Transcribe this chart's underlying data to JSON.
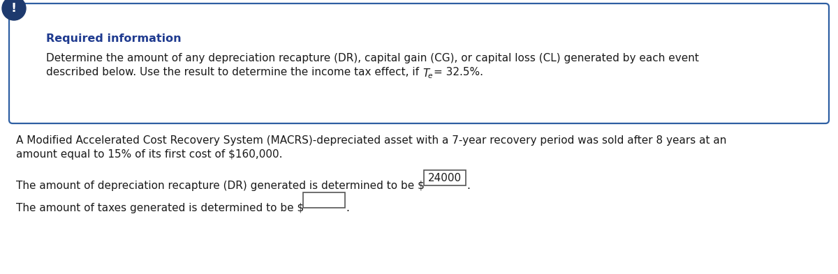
{
  "bg_color": "#ffffff",
  "box_border_color": "#2e5fa3",
  "icon_bg_color": "#1e3a6e",
  "icon_text": "!",
  "icon_text_color": "#ffffff",
  "required_info_label": "Required information",
  "required_info_color": "#1e3a8f",
  "box_text_line1": "Determine the amount of any depreciation recapture (DR), capital gain (CG), or capital loss (CL) generated by each event",
  "box_text_line2_pre": "described below. Use the result to determine the income tax effect, if ",
  "box_text_line2_post": "= 32.5%.",
  "main_text_line1": "A Modified Accelerated Cost Recovery System (MACRS)-depreciated asset with a 7-year recovery period was sold after 8 years at an",
  "main_text_line2": "amount equal to 15% of its first cost of $160,000.",
  "dr_text_prefix": "The amount of depreciation recapture (DR) generated is determined to be $",
  "dr_value": "24000",
  "tax_text_prefix": "The amount of taxes generated is determined to be $",
  "tax_value": "",
  "text_color": "#1a1a1a",
  "font_size_body": 11.0,
  "font_size_required": 11.5,
  "box_input_border": "#555555",
  "fig_width": 12.0,
  "fig_height": 3.93,
  "dpi": 100
}
